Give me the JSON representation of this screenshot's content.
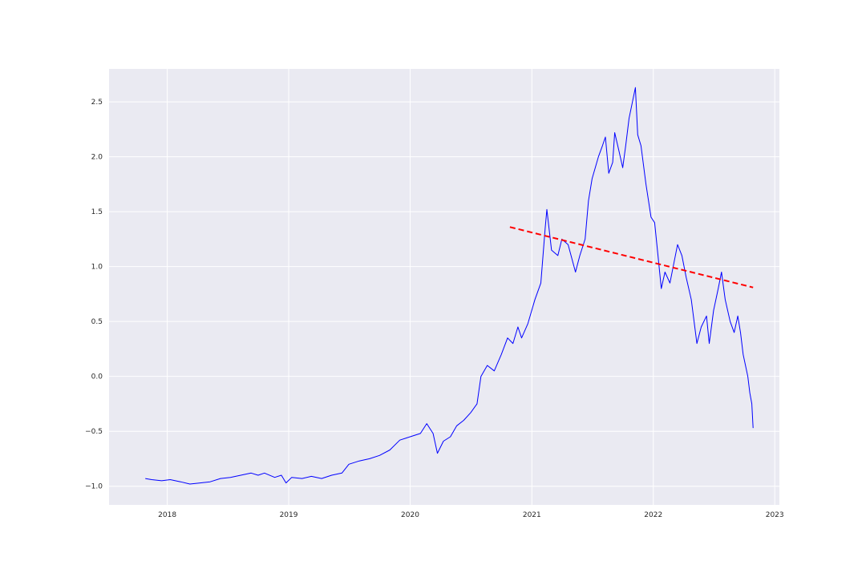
{
  "chart_data": {
    "type": "line",
    "title": "",
    "xlabel": "",
    "ylabel": "",
    "style": {
      "background": "#EAEAF2",
      "grid": "#ffffff",
      "grid_on": true,
      "legend": "none"
    },
    "xlim": [
      "2017-07-10",
      "2023-01-15"
    ],
    "ylim": [
      -1.17,
      2.8
    ],
    "x_ticks": [
      {
        "value": "2018-01-01",
        "label": "2018"
      },
      {
        "value": "2019-01-01",
        "label": "2019"
      },
      {
        "value": "2020-01-01",
        "label": "2020"
      },
      {
        "value": "2021-01-01",
        "label": "2021"
      },
      {
        "value": "2022-01-01",
        "label": "2022"
      },
      {
        "value": "2023-01-01",
        "label": "2023"
      }
    ],
    "y_ticks": [
      {
        "value": -1.0,
        "label": "−1.0"
      },
      {
        "value": -0.5,
        "label": "−0.5"
      },
      {
        "value": 0.0,
        "label": "0.0"
      },
      {
        "value": 0.5,
        "label": "0.5"
      },
      {
        "value": 1.0,
        "label": "1.0"
      },
      {
        "value": 1.5,
        "label": "1.5"
      },
      {
        "value": 2.0,
        "label": "2.0"
      },
      {
        "value": 2.5,
        "label": "2.5"
      }
    ],
    "series": [
      {
        "color": "#0000FF",
        "style": "solid",
        "points": [
          [
            "2017-10-27",
            -0.93
          ],
          [
            "2017-11-15",
            -0.94
          ],
          [
            "2017-12-15",
            -0.95
          ],
          [
            "2018-01-10",
            -0.94
          ],
          [
            "2018-02-10",
            -0.96
          ],
          [
            "2018-03-10",
            -0.98
          ],
          [
            "2018-04-10",
            -0.97
          ],
          [
            "2018-05-10",
            -0.96
          ],
          [
            "2018-06-10",
            -0.93
          ],
          [
            "2018-07-10",
            -0.92
          ],
          [
            "2018-08-10",
            -0.9
          ],
          [
            "2018-09-10",
            -0.88
          ],
          [
            "2018-10-01",
            -0.9
          ],
          [
            "2018-10-20",
            -0.88
          ],
          [
            "2018-11-20",
            -0.92
          ],
          [
            "2018-12-10",
            -0.9
          ],
          [
            "2018-12-24",
            -0.97
          ],
          [
            "2019-01-10",
            -0.92
          ],
          [
            "2019-02-10",
            -0.93
          ],
          [
            "2019-03-10",
            -0.91
          ],
          [
            "2019-04-10",
            -0.93
          ],
          [
            "2019-05-10",
            -0.9
          ],
          [
            "2019-06-10",
            -0.88
          ],
          [
            "2019-07-01",
            -0.8
          ],
          [
            "2019-08-01",
            -0.77
          ],
          [
            "2019-09-01",
            -0.75
          ],
          [
            "2019-10-01",
            -0.72
          ],
          [
            "2019-11-01",
            -0.67
          ],
          [
            "2019-12-01",
            -0.58
          ],
          [
            "2020-01-01",
            -0.55
          ],
          [
            "2020-02-01",
            -0.52
          ],
          [
            "2020-02-20",
            -0.43
          ],
          [
            "2020-03-10",
            -0.52
          ],
          [
            "2020-03-23",
            -0.7
          ],
          [
            "2020-04-10",
            -0.59
          ],
          [
            "2020-05-01",
            -0.55
          ],
          [
            "2020-05-20",
            -0.45
          ],
          [
            "2020-06-10",
            -0.4
          ],
          [
            "2020-07-01",
            -0.33
          ],
          [
            "2020-07-20",
            -0.25
          ],
          [
            "2020-08-01",
            0.0
          ],
          [
            "2020-08-20",
            0.1
          ],
          [
            "2020-09-10",
            0.05
          ],
          [
            "2020-10-01",
            0.2
          ],
          [
            "2020-10-20",
            0.35
          ],
          [
            "2020-11-05",
            0.3
          ],
          [
            "2020-11-20",
            0.45
          ],
          [
            "2020-12-01",
            0.35
          ],
          [
            "2020-12-20",
            0.48
          ],
          [
            "2021-01-10",
            0.7
          ],
          [
            "2021-01-28",
            0.85
          ],
          [
            "2021-02-10",
            1.35
          ],
          [
            "2021-02-15",
            1.52
          ],
          [
            "2021-03-01",
            1.15
          ],
          [
            "2021-03-20",
            1.1
          ],
          [
            "2021-04-01",
            1.25
          ],
          [
            "2021-04-20",
            1.2
          ],
          [
            "2021-05-12",
            0.95
          ],
          [
            "2021-05-25",
            1.1
          ],
          [
            "2021-06-10",
            1.25
          ],
          [
            "2021-06-20",
            1.6
          ],
          [
            "2021-07-01",
            1.8
          ],
          [
            "2021-07-20",
            2.0
          ],
          [
            "2021-08-01",
            2.1
          ],
          [
            "2021-08-10",
            2.18
          ],
          [
            "2021-08-20",
            1.85
          ],
          [
            "2021-09-01",
            1.95
          ],
          [
            "2021-09-07",
            2.22
          ],
          [
            "2021-09-20",
            2.05
          ],
          [
            "2021-10-01",
            1.9
          ],
          [
            "2021-10-10",
            2.1
          ],
          [
            "2021-10-20",
            2.35
          ],
          [
            "2021-11-08",
            2.63
          ],
          [
            "2021-11-15",
            2.2
          ],
          [
            "2021-11-25",
            2.1
          ],
          [
            "2021-12-10",
            1.75
          ],
          [
            "2021-12-25",
            1.45
          ],
          [
            "2022-01-05",
            1.4
          ],
          [
            "2022-01-15",
            1.1
          ],
          [
            "2022-01-25",
            0.8
          ],
          [
            "2022-02-05",
            0.95
          ],
          [
            "2022-02-20",
            0.85
          ],
          [
            "2022-03-05",
            1.05
          ],
          [
            "2022-03-15",
            1.2
          ],
          [
            "2022-03-28",
            1.1
          ],
          [
            "2022-04-10",
            0.9
          ],
          [
            "2022-04-25",
            0.7
          ],
          [
            "2022-05-12",
            0.3
          ],
          [
            "2022-05-25",
            0.45
          ],
          [
            "2022-06-10",
            0.55
          ],
          [
            "2022-06-18",
            0.3
          ],
          [
            "2022-07-01",
            0.6
          ],
          [
            "2022-07-15",
            0.8
          ],
          [
            "2022-07-25",
            0.95
          ],
          [
            "2022-08-05",
            0.7
          ],
          [
            "2022-08-20",
            0.5
          ],
          [
            "2022-09-01",
            0.4
          ],
          [
            "2022-09-12",
            0.55
          ],
          [
            "2022-09-20",
            0.4
          ],
          [
            "2022-09-28",
            0.2
          ],
          [
            "2022-10-05",
            0.1
          ],
          [
            "2022-10-12",
            0.0
          ],
          [
            "2022-10-18",
            -0.15
          ],
          [
            "2022-10-24",
            -0.25
          ],
          [
            "2022-10-28",
            -0.47
          ]
        ]
      },
      {
        "color": "#FF0000",
        "style": "dashed",
        "points": [
          [
            "2020-10-27",
            1.36
          ],
          [
            "2022-10-28",
            0.81
          ]
        ]
      }
    ]
  }
}
